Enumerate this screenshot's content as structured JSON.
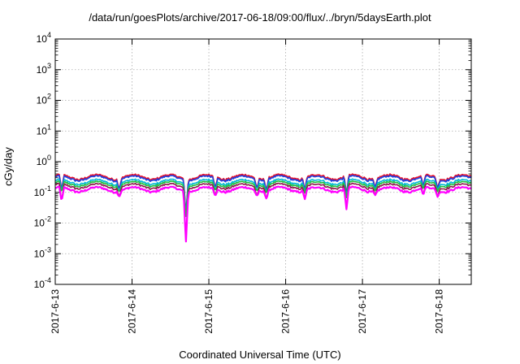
{
  "chart_data": {
    "type": "line",
    "title": "/data/run/goesPlots/archive/2017-06-18/09:00/flux/../bryn/5daysEarth.plot",
    "xlabel": "Coordinated Universal Time (UTC)",
    "ylabel": "cGy/day",
    "yscale": "log",
    "ylim": [
      0.0001,
      10000
    ],
    "y_ticks": [
      {
        "value": 0.0001,
        "base": "10",
        "exp": "-4"
      },
      {
        "value": 0.001,
        "base": "10",
        "exp": "-3"
      },
      {
        "value": 0.01,
        "base": "10",
        "exp": "-2"
      },
      {
        "value": 0.1,
        "base": "10",
        "exp": "-1"
      },
      {
        "value": 1,
        "base": "10",
        "exp": "0"
      },
      {
        "value": 10,
        "base": "10",
        "exp": "1"
      },
      {
        "value": 100,
        "base": "10",
        "exp": "2"
      },
      {
        "value": 1000,
        "base": "10",
        "exp": "3"
      },
      {
        "value": 10000,
        "base": "10",
        "exp": "4"
      }
    ],
    "x_ticks": [
      "2017-6-13",
      "2017-6-14",
      "2017-6-15",
      "2017-6-16",
      "2017-6-17",
      "2017-6-18"
    ],
    "xlim": [
      "2017-06-13T00:00",
      "2017-06-18T10:00"
    ],
    "grid": true,
    "legend": "none",
    "series": [
      {
        "color": "#e8102a",
        "level": 0.32
      },
      {
        "color": "#1c3fe0",
        "level": 0.29
      },
      {
        "color": "#00b8d4",
        "level": 0.22
      },
      {
        "color": "#20c040",
        "level": 0.19
      },
      {
        "color": "#8b1a4a",
        "level": 0.16
      },
      {
        "color": "#ff00ff",
        "level": 0.125
      }
    ],
    "dips": [
      {
        "t": "2017-06-13T02:00",
        "min": 0.05
      },
      {
        "t": "2017-06-13T20:00",
        "min": 0.07
      },
      {
        "t": "2017-06-14T16:50",
        "min": 0.0022
      },
      {
        "t": "2017-06-15T02:00",
        "min": 0.075
      },
      {
        "t": "2017-06-15T15:00",
        "min": 0.075
      },
      {
        "t": "2017-06-15T18:00",
        "min": 0.06
      },
      {
        "t": "2017-06-16T06:00",
        "min": 0.06
      },
      {
        "t": "2017-06-16T19:00",
        "min": 0.028
      },
      {
        "t": "2017-06-17T04:00",
        "min": 0.08
      },
      {
        "t": "2017-06-17T19:00",
        "min": 0.08
      },
      {
        "t": "2017-06-17T23:30",
        "min": 0.07
      }
    ]
  }
}
